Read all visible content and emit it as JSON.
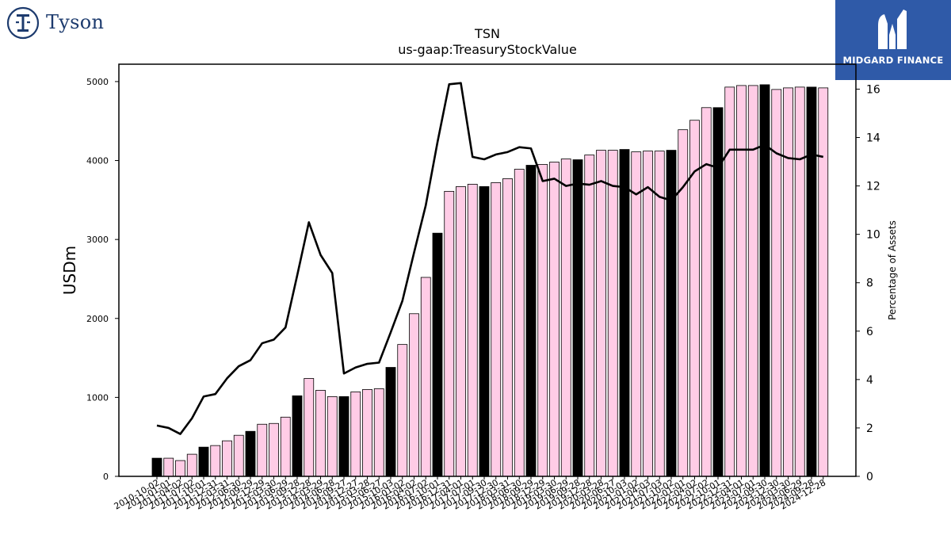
{
  "branding": {
    "company_name": "Tyson",
    "company_logo_icon": "tyson-t-emblem-icon",
    "publisher_name": "MIDGARD FINANCE",
    "publisher_logo_icon": "midgard-m-emblem-icon"
  },
  "chart_data": {
    "type": "bar+line",
    "title": "TSN",
    "subtitle": "us-gaap:TreasuryStockValue",
    "ylabel": "USDm",
    "y2label": "Percentage of Assets",
    "ylim": [
      0,
      5220
    ],
    "y2lim": [
      0,
      17.03
    ],
    "yticks": [
      0,
      1000,
      2000,
      3000,
      4000,
      5000
    ],
    "y2ticks": [
      0,
      2,
      4,
      6,
      8,
      10,
      12,
      14,
      16
    ],
    "grid": false,
    "colors": {
      "bar_default": "#ffcce6",
      "bar_fiscal_year_end": "#000000",
      "line": "#000000"
    },
    "x": [
      "2010-10-02",
      "2011-01-01",
      "2011-04-02",
      "2011-07-02",
      "2011-10-01",
      "2011-12-31",
      "2012-03-31",
      "2012-06-30",
      "2012-09-29",
      "2012-12-29",
      "2013-03-30",
      "2013-06-29",
      "2013-09-28",
      "2013-12-28",
      "2014-03-29",
      "2014-06-28",
      "2014-09-27",
      "2014-12-27",
      "2015-03-28",
      "2015-06-27",
      "2015-10-03",
      "2016-01-02",
      "2016-04-02",
      "2016-07-02",
      "2016-10-01",
      "2016-12-31",
      "2017-04-01",
      "2017-07-01",
      "2017-09-30",
      "2017-12-30",
      "2018-03-31",
      "2018-06-30",
      "2018-09-29",
      "2018-12-29",
      "2019-03-30",
      "2019-06-29",
      "2019-09-28",
      "2019-12-28",
      "2020-03-28",
      "2020-06-27",
      "2020-10-03",
      "2021-01-02",
      "2021-04-03",
      "2021-07-03",
      "2021-10-02",
      "2022-01-01",
      "2022-04-02",
      "2022-07-02",
      "2022-10-01",
      "2022-12-31",
      "2023-04-01",
      "2023-07-01",
      "2023-09-30",
      "2023-12-30",
      "2024-03-30",
      "2024-06-29",
      "2024-09-28",
      "2024-12-28"
    ],
    "series": [
      {
        "kind": "bar",
        "axis": "left",
        "values": [
          230,
          230,
          200,
          280,
          370,
          390,
          450,
          520,
          570,
          660,
          670,
          750,
          1020,
          1240,
          1090,
          1010,
          1010,
          1070,
          1100,
          1110,
          1380,
          1670,
          2060,
          2520,
          3080,
          3610,
          3670,
          3700,
          3670,
          3720,
          3770,
          3890,
          3940,
          3950,
          3980,
          4020,
          4010,
          4070,
          4130,
          4130,
          4140,
          4110,
          4120,
          4120,
          4130,
          4390,
          4510,
          4670,
          4670,
          4930,
          4950,
          4950,
          4960,
          4900,
          4920,
          4930,
          4930,
          4920
        ],
        "fiscal_year_end": [
          true,
          false,
          false,
          false,
          true,
          false,
          false,
          false,
          true,
          false,
          false,
          false,
          true,
          false,
          false,
          false,
          true,
          false,
          false,
          false,
          true,
          false,
          false,
          false,
          true,
          false,
          false,
          false,
          true,
          false,
          false,
          false,
          true,
          false,
          false,
          false,
          true,
          false,
          false,
          false,
          true,
          false,
          false,
          false,
          true,
          false,
          false,
          false,
          true,
          false,
          false,
          false,
          true,
          false,
          false,
          false,
          true,
          false
        ]
      },
      {
        "kind": "line",
        "axis": "right",
        "values": [
          2.1,
          2.0,
          1.75,
          2.4,
          3.3,
          3.4,
          4.05,
          4.55,
          4.8,
          5.5,
          5.65,
          6.15,
          8.3,
          10.5,
          9.15,
          8.4,
          4.25,
          4.5,
          4.65,
          4.7,
          5.95,
          7.25,
          9.25,
          11.2,
          13.8,
          16.2,
          16.25,
          13.2,
          13.1,
          13.3,
          13.4,
          13.6,
          13.55,
          12.2,
          12.3,
          12.0,
          12.1,
          12.05,
          12.2,
          12.0,
          11.95,
          11.65,
          11.95,
          11.55,
          11.4,
          11.95,
          12.6,
          12.9,
          12.75,
          13.5,
          13.5,
          13.5,
          13.7,
          13.35,
          13.15,
          13.1,
          13.3,
          13.2
        ]
      }
    ]
  }
}
